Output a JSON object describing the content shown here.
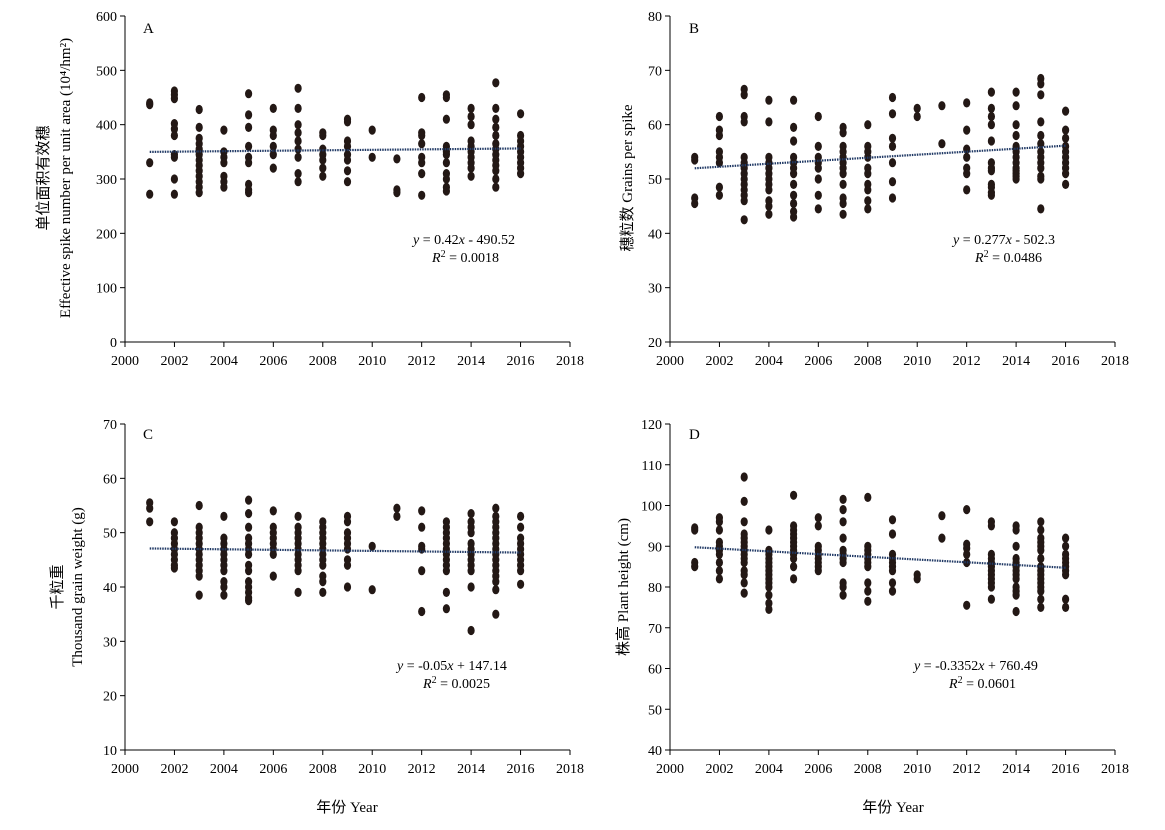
{
  "x_axis_label": "年份 Year",
  "chart_data": [
    {
      "panel": "A",
      "type": "scatter",
      "ylabel_cn": "单位面积有效穗",
      "ylabel_en": "Effective spike number per unit area (10⁴/hm²)",
      "xlim": [
        2000,
        2018
      ],
      "ylim": [
        0,
        600
      ],
      "xticks": [
        2000,
        2002,
        2004,
        2006,
        2008,
        2010,
        2012,
        2014,
        2016,
        2018
      ],
      "yticks": [
        0,
        100,
        200,
        300,
        400,
        500,
        600
      ],
      "trendline": {
        "slope": 0.42,
        "intercept": -490.52,
        "x_range": [
          2001,
          2016
        ]
      },
      "equation": {
        "lhs": "y",
        "rhs": " = 0.42",
        "var": "x",
        "tail": " - 490.52",
        "r2_label": "R",
        "r2_sup": "2",
        "r2_value": " = 0.0018"
      },
      "points": [
        {
          "year": 2001,
          "values": [
            437,
            440,
            330,
            272
          ]
        },
        {
          "year": 2002,
          "values": [
            462,
            455,
            448,
            402,
            392,
            380,
            345,
            340,
            300,
            272
          ]
        },
        {
          "year": 2003,
          "values": [
            428,
            395,
            375,
            365,
            355,
            345,
            335,
            325,
            315,
            305,
            295,
            285,
            275
          ]
        },
        {
          "year": 2004,
          "values": [
            390,
            350,
            340,
            330,
            305,
            295,
            285
          ]
        },
        {
          "year": 2005,
          "values": [
            457,
            418,
            395,
            360,
            340,
            330,
            290,
            280,
            275
          ]
        },
        {
          "year": 2006,
          "values": [
            430,
            390,
            380,
            360,
            345,
            320
          ]
        },
        {
          "year": 2007,
          "values": [
            467,
            430,
            400,
            385,
            370,
            355,
            340,
            310,
            295
          ]
        },
        {
          "year": 2008,
          "values": [
            385,
            380,
            355,
            345,
            335,
            320,
            305
          ]
        },
        {
          "year": 2009,
          "values": [
            410,
            405,
            370,
            360,
            345,
            335,
            315,
            295
          ]
        },
        {
          "year": 2010,
          "values": [
            390,
            340
          ]
        },
        {
          "year": 2011,
          "values": [
            337,
            280,
            275
          ]
        },
        {
          "year": 2012,
          "values": [
            450,
            385,
            380,
            365,
            340,
            330,
            310,
            270
          ]
        },
        {
          "year": 2013,
          "values": [
            455,
            450,
            410,
            360,
            350,
            345,
            330,
            310,
            300,
            285,
            278
          ]
        },
        {
          "year": 2014,
          "values": [
            430,
            415,
            400,
            370,
            360,
            350,
            340,
            330,
            320,
            305
          ]
        },
        {
          "year": 2015,
          "values": [
            477,
            430,
            410,
            395,
            380,
            365,
            355,
            345,
            335,
            325,
            315,
            300,
            285
          ]
        },
        {
          "year": 2016,
          "values": [
            420,
            380,
            370,
            360,
            350,
            340,
            330,
            320,
            310
          ]
        }
      ]
    },
    {
      "panel": "B",
      "type": "scatter",
      "ylabel_cn": "穗粒数",
      "ylabel_en": "Grains per spike",
      "xlim": [
        2000,
        2018
      ],
      "ylim": [
        20,
        80
      ],
      "xticks": [
        2000,
        2002,
        2004,
        2006,
        2008,
        2010,
        2012,
        2014,
        2016,
        2018
      ],
      "yticks": [
        20,
        30,
        40,
        50,
        60,
        70,
        80
      ],
      "trendline": {
        "slope": 0.277,
        "intercept": -502.3,
        "x_range": [
          2001,
          2016
        ]
      },
      "equation": {
        "lhs": "y",
        "rhs": " = 0.277",
        "var": "x",
        "tail": " - 502.3",
        "r2_label": "R",
        "r2_sup": "2",
        "r2_value": " = 0.0486"
      },
      "points": [
        {
          "year": 2001,
          "values": [
            54,
            53.5,
            46.5,
            45.5
          ]
        },
        {
          "year": 2002,
          "values": [
            61.5,
            59,
            58,
            55,
            54,
            53,
            48.5,
            47
          ]
        },
        {
          "year": 2003,
          "values": [
            66.5,
            65.5,
            61.5,
            60.5,
            54,
            53,
            52,
            51,
            50,
            49,
            48,
            47,
            46,
            42.5
          ]
        },
        {
          "year": 2004,
          "values": [
            64.5,
            60.5,
            54,
            53,
            52,
            51,
            50,
            49,
            48,
            46,
            45,
            43.5
          ]
        },
        {
          "year": 2005,
          "values": [
            64.5,
            59.5,
            57,
            54,
            53,
            52,
            51,
            49,
            47,
            45.5,
            44,
            43
          ]
        },
        {
          "year": 2006,
          "values": [
            61.5,
            56,
            54,
            53,
            52,
            50,
            47,
            44.5
          ]
        },
        {
          "year": 2007,
          "values": [
            59.5,
            58.5,
            56,
            55,
            54,
            53,
            52,
            51,
            49,
            46.5,
            45.5,
            43.5
          ]
        },
        {
          "year": 2008,
          "values": [
            60,
            56,
            55,
            54,
            52,
            51,
            49,
            48,
            46,
            44.5
          ]
        },
        {
          "year": 2009,
          "values": [
            65,
            62,
            57.5,
            56,
            53,
            49.5,
            46.5
          ]
        },
        {
          "year": 2010,
          "values": [
            63,
            61.5
          ]
        },
        {
          "year": 2011,
          "values": [
            63.5,
            56.5
          ]
        },
        {
          "year": 2012,
          "values": [
            64,
            59,
            55.5,
            54,
            52,
            51,
            48
          ]
        },
        {
          "year": 2013,
          "values": [
            66,
            63,
            61.5,
            60,
            57,
            53,
            52,
            51.5,
            49,
            48.5,
            47.5,
            47
          ]
        },
        {
          "year": 2014,
          "values": [
            66,
            63.5,
            60,
            58,
            56,
            55,
            54,
            53,
            52,
            51.5,
            51,
            50.5,
            50
          ]
        },
        {
          "year": 2015,
          "values": [
            68.5,
            67.5,
            65.5,
            60.5,
            58,
            56.5,
            55,
            54,
            53,
            52,
            50.5,
            50,
            44.5
          ]
        },
        {
          "year": 2016,
          "values": [
            62.5,
            59,
            57.5,
            56,
            55,
            54,
            53,
            52,
            51,
            49
          ]
        }
      ]
    },
    {
      "panel": "C",
      "type": "scatter",
      "ylabel_cn": "千粒重",
      "ylabel_en": "Thousand grain weight (g)",
      "xlim": [
        2000,
        2018
      ],
      "ylim": [
        10,
        70
      ],
      "xticks": [
        2000,
        2002,
        2004,
        2006,
        2008,
        2010,
        2012,
        2014,
        2016,
        2018
      ],
      "yticks": [
        10,
        20,
        30,
        40,
        50,
        60,
        70
      ],
      "trendline": {
        "slope": -0.05,
        "intercept": 147.14,
        "x_range": [
          2001,
          2016
        ]
      },
      "equation": {
        "lhs": "y",
        "rhs": " = -0.05",
        "var": "x",
        "tail": " + 147.14",
        "r2_label": "R",
        "r2_sup": "2",
        "r2_value": " = 0.0025"
      },
      "points": [
        {
          "year": 2001,
          "values": [
            55.5,
            54.5,
            52
          ]
        },
        {
          "year": 2002,
          "values": [
            52,
            50,
            49,
            48,
            47,
            46,
            45,
            44,
            43.5
          ]
        },
        {
          "year": 2003,
          "values": [
            55,
            51,
            50,
            49,
            48,
            47,
            46,
            45,
            44,
            43,
            42,
            38.5
          ]
        },
        {
          "year": 2004,
          "values": [
            53,
            49,
            48,
            47,
            46,
            45,
            44,
            43,
            41,
            40,
            38.5
          ]
        },
        {
          "year": 2005,
          "values": [
            56,
            53.5,
            51,
            49,
            48,
            47,
            46,
            44,
            43,
            41,
            40,
            39,
            38,
            37.5
          ]
        },
        {
          "year": 2006,
          "values": [
            54,
            51,
            50,
            49,
            48,
            47,
            46,
            42
          ]
        },
        {
          "year": 2007,
          "values": [
            53,
            51,
            50,
            49,
            48,
            47,
            46,
            45,
            44,
            43,
            39
          ]
        },
        {
          "year": 2008,
          "values": [
            52,
            51,
            50,
            49,
            48,
            47,
            46,
            45,
            44,
            42,
            41,
            39
          ]
        },
        {
          "year": 2009,
          "values": [
            53,
            52,
            50,
            49,
            48,
            47,
            45,
            44,
            40
          ]
        },
        {
          "year": 2010,
          "values": [
            47.5,
            39.5
          ]
        },
        {
          "year": 2011,
          "values": [
            54.5,
            53
          ]
        },
        {
          "year": 2012,
          "values": [
            54,
            51,
            47.5,
            47,
            43,
            35.5
          ]
        },
        {
          "year": 2013,
          "values": [
            52,
            51,
            50,
            49,
            48,
            47,
            46,
            45,
            44,
            43,
            39,
            36
          ]
        },
        {
          "year": 2014,
          "values": [
            53.5,
            52,
            51,
            50,
            48,
            47,
            46,
            45,
            44,
            43,
            40,
            32
          ]
        },
        {
          "year": 2015,
          "values": [
            54.5,
            53,
            52,
            51,
            50,
            49,
            48,
            47,
            46,
            45,
            44,
            43,
            42,
            41,
            39.5,
            35
          ]
        },
        {
          "year": 2016,
          "values": [
            53,
            51,
            49,
            48,
            47,
            46,
            45,
            44,
            43,
            40.5
          ]
        }
      ]
    },
    {
      "panel": "D",
      "type": "scatter",
      "ylabel_cn": "株高",
      "ylabel_en": "Plant height (cm)",
      "xlim": [
        2000,
        2018
      ],
      "ylim": [
        40,
        120
      ],
      "xticks": [
        2000,
        2002,
        2004,
        2006,
        2008,
        2010,
        2012,
        2014,
        2016,
        2018
      ],
      "yticks": [
        40,
        50,
        60,
        70,
        80,
        90,
        100,
        110,
        120
      ],
      "trendline": {
        "slope": -0.3352,
        "intercept": 760.49,
        "x_range": [
          2001,
          2016
        ]
      },
      "equation": {
        "lhs": "y",
        "rhs": " = -0.3352",
        "var": "x",
        "tail": " + 760.49",
        "r2_label": "R",
        "r2_sup": "2",
        "r2_value": " = 0.0601"
      },
      "points": [
        {
          "year": 2001,
          "values": [
            94.5,
            94,
            86,
            85
          ]
        },
        {
          "year": 2002,
          "values": [
            97,
            96,
            94,
            91,
            90,
            89,
            88,
            86,
            84,
            82
          ]
        },
        {
          "year": 2003,
          "values": [
            107,
            101,
            96,
            93,
            92,
            91,
            90,
            89,
            88,
            87,
            86,
            84,
            83,
            81,
            78.5
          ]
        },
        {
          "year": 2004,
          "values": [
            94,
            89,
            88,
            87,
            86,
            85,
            84,
            83,
            82,
            81,
            80,
            78,
            76,
            74.5
          ]
        },
        {
          "year": 2005,
          "values": [
            102.5,
            95,
            94,
            93,
            92,
            91,
            90,
            89,
            88,
            87,
            85,
            82
          ]
        },
        {
          "year": 2006,
          "values": [
            97,
            95,
            90,
            89,
            88,
            87,
            86,
            85,
            84
          ]
        },
        {
          "year": 2007,
          "values": [
            101.5,
            99,
            96,
            92,
            89,
            88,
            87,
            86,
            81,
            80,
            78
          ]
        },
        {
          "year": 2008,
          "values": [
            102,
            90,
            89,
            88,
            87,
            86,
            85,
            81,
            79,
            76.5
          ]
        },
        {
          "year": 2009,
          "values": [
            96.5,
            93,
            88,
            87,
            86,
            85,
            84,
            81,
            79
          ]
        },
        {
          "year": 2010,
          "values": [
            83,
            82
          ]
        },
        {
          "year": 2011,
          "values": [
            97.5,
            92
          ]
        },
        {
          "year": 2012,
          "values": [
            99,
            90.5,
            89.5,
            88,
            86,
            75.5
          ]
        },
        {
          "year": 2013,
          "values": [
            96,
            95,
            88,
            87,
            86,
            85,
            84,
            83,
            82,
            81,
            80,
            77
          ]
        },
        {
          "year": 2014,
          "values": [
            95,
            94,
            90,
            87,
            86,
            85,
            84,
            83,
            82,
            80,
            79,
            78,
            74
          ]
        },
        {
          "year": 2015,
          "values": [
            96,
            94,
            92,
            91,
            90,
            89,
            87,
            85,
            84,
            83,
            82,
            81,
            80,
            79,
            77,
            75
          ]
        },
        {
          "year": 2016,
          "values": [
            92,
            90,
            88,
            87,
            86,
            85,
            84,
            83,
            77,
            75
          ]
        }
      ]
    }
  ]
}
